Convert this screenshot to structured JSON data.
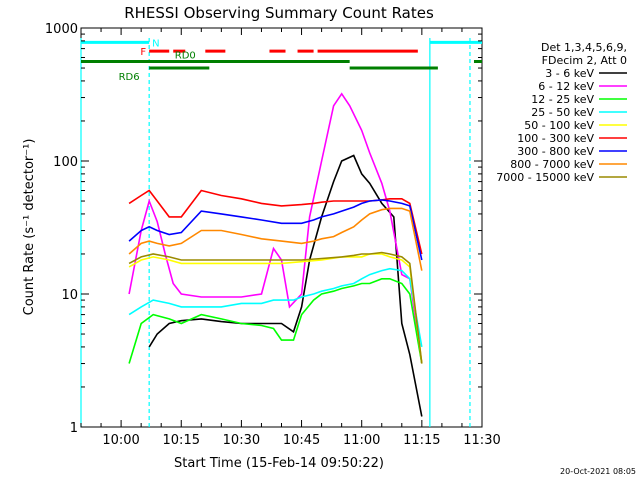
{
  "chart_data": {
    "type": "line",
    "title": "RHESSI Observing Summary Count Rates",
    "xlabel": "Start Time (15-Feb-14 09:50:22)",
    "ylabel": "Count Rate (s⁻¹ detector⁻¹)",
    "yscale": "log",
    "ylim": [
      1,
      1000
    ],
    "xlim_min": [
      -10,
      90
    ],
    "x_ticks": [
      {
        "min": 0,
        "label": "10:00"
      },
      {
        "min": 15,
        "label": "10:15"
      },
      {
        "min": 30,
        "label": "10:30"
      },
      {
        "min": 45,
        "label": "10:45"
      },
      {
        "min": 60,
        "label": "11:00"
      },
      {
        "min": 75,
        "label": "11:15"
      },
      {
        "min": 90,
        "label": "11:30"
      }
    ],
    "y_ticks": [
      {
        "v": 1,
        "label": "1"
      },
      {
        "v": 10,
        "label": "10"
      },
      {
        "v": 100,
        "label": "100"
      },
      {
        "v": 1000,
        "label": "1000"
      }
    ],
    "legend": {
      "placement": "right",
      "header": [
        "Det 1,3,4,5,6,9,",
        "FDecim 2, Att 0"
      ]
    },
    "series": [
      {
        "name": "3 - 6 keV",
        "color": "#000000",
        "x": [
          7,
          9,
          12,
          15,
          20,
          25,
          30,
          35,
          40,
          43,
          45,
          47,
          50,
          53,
          55,
          58,
          60,
          62,
          65,
          68,
          70,
          72,
          75
        ],
        "y": [
          4,
          5,
          6,
          6.3,
          6.5,
          6.2,
          6,
          6,
          6,
          5.2,
          8,
          18,
          38,
          70,
          100,
          110,
          80,
          68,
          48,
          38,
          6,
          3.5,
          1.2
        ]
      },
      {
        "name": "6 - 12 keV",
        "color": "#ff00ff",
        "x": [
          2,
          5,
          7,
          9,
          11,
          13,
          15,
          20,
          25,
          30,
          35,
          38,
          40,
          42,
          45,
          47,
          50,
          53,
          55,
          57,
          60,
          62,
          65,
          67,
          70,
          72,
          75
        ],
        "y": [
          10,
          30,
          50,
          35,
          20,
          12,
          10,
          9.5,
          9.5,
          9.5,
          10,
          22,
          18,
          8,
          10,
          38,
          100,
          260,
          320,
          260,
          170,
          115,
          68,
          42,
          14,
          13,
          3
        ]
      },
      {
        "name": "12 - 25 keV",
        "color": "#00ff00",
        "x": [
          2,
          5,
          8,
          12,
          15,
          20,
          25,
          30,
          35,
          38,
          40,
          43,
          45,
          48,
          50,
          53,
          55,
          58,
          60,
          62,
          65,
          67,
          70,
          72,
          75
        ],
        "y": [
          3,
          6,
          7,
          6.5,
          6,
          7,
          6.5,
          6,
          5.8,
          5.5,
          4.5,
          4.5,
          7,
          9,
          10,
          10.5,
          11,
          11.5,
          12,
          12,
          13,
          13,
          12,
          10,
          3
        ]
      },
      {
        "name": "25 - 50 keV",
        "color": "#00ffff",
        "x": [
          2,
          5,
          8,
          12,
          15,
          20,
          25,
          30,
          35,
          38,
          40,
          43,
          45,
          48,
          50,
          53,
          55,
          58,
          60,
          62,
          65,
          67,
          70,
          72,
          75
        ],
        "y": [
          7,
          8,
          9,
          8.5,
          8,
          8,
          8,
          8.5,
          8.5,
          9,
          9,
          9,
          9.5,
          10,
          10.5,
          11,
          11.5,
          12,
          13,
          14,
          15,
          15.5,
          15,
          13,
          4
        ]
      },
      {
        "name": "50 - 100 keV",
        "color": "#ffff00",
        "x": [
          2,
          5,
          8,
          12,
          15,
          20,
          25,
          30,
          35,
          40,
          45,
          50,
          55,
          58,
          60,
          62,
          65,
          67,
          70,
          72,
          75
        ],
        "y": [
          16,
          18,
          19,
          18,
          17,
          17,
          17,
          17,
          17,
          17,
          17.5,
          18,
          19,
          19,
          19,
          20,
          20,
          19,
          18,
          16,
          3
        ]
      },
      {
        "name": "100 - 300 keV",
        "color": "#ff0000",
        "x": [
          2,
          5,
          7,
          9,
          12,
          15,
          20,
          25,
          30,
          35,
          40,
          45,
          48,
          50,
          53,
          55,
          58,
          60,
          62,
          65,
          67,
          70,
          72,
          75
        ],
        "y": [
          48,
          55,
          60,
          50,
          38,
          38,
          60,
          55,
          52,
          48,
          46,
          47,
          48,
          49,
          50,
          50,
          50,
          50,
          50,
          51,
          52,
          52,
          48,
          20
        ]
      },
      {
        "name": "300 - 800 keV",
        "color": "#0000ff",
        "x": [
          2,
          5,
          7,
          9,
          12,
          15,
          20,
          25,
          30,
          35,
          40,
          45,
          48,
          50,
          53,
          55,
          58,
          60,
          62,
          65,
          67,
          70,
          72,
          75
        ],
        "y": [
          25,
          30,
          32,
          30,
          28,
          29,
          42,
          40,
          38,
          36,
          34,
          34,
          36,
          38,
          40,
          42,
          45,
          48,
          50,
          51,
          50,
          48,
          46,
          18
        ]
      },
      {
        "name": "800 - 7000 keV",
        "color": "#ff8800",
        "x": [
          2,
          5,
          7,
          9,
          12,
          15,
          20,
          25,
          30,
          35,
          40,
          45,
          48,
          50,
          53,
          55,
          58,
          60,
          62,
          65,
          67,
          70,
          72,
          75
        ],
        "y": [
          20,
          24,
          25,
          24,
          23,
          24,
          30,
          30,
          28,
          26,
          25,
          24,
          25,
          26,
          27,
          29,
          32,
          36,
          40,
          43,
          44,
          44,
          42,
          15
        ]
      },
      {
        "name": "7000 - 15000 keV",
        "color": "#9a8a00",
        "x": [
          2,
          5,
          8,
          12,
          15,
          20,
          25,
          30,
          35,
          40,
          45,
          50,
          55,
          58,
          60,
          62,
          65,
          67,
          70,
          72,
          75
        ],
        "y": [
          17,
          19,
          20,
          19,
          18,
          18,
          18,
          18,
          18,
          18,
          18,
          18.5,
          19,
          19.5,
          20,
          20,
          20.5,
          20,
          19,
          17,
          3
        ]
      }
    ],
    "status_flags": [
      {
        "label": "N",
        "color": "#00ffff",
        "level": 780,
        "segments": [
          [
            -10,
            7
          ],
          [
            77,
            90
          ]
        ]
      },
      {
        "label": "F",
        "color": "#ff0000",
        "level": 670,
        "segments": [
          [
            7,
            12
          ],
          [
            13,
            16
          ],
          [
            21,
            26
          ],
          [
            37,
            41
          ],
          [
            44,
            48
          ],
          [
            49,
            74
          ]
        ]
      },
      {
        "label": "RD0",
        "color": "#007f00",
        "level": 560,
        "segments": [
          [
            -10,
            57
          ],
          [
            88,
            90
          ]
        ]
      },
      {
        "label": "RD6",
        "color": "#007f00",
        "level": 500,
        "segments": [
          [
            7,
            22
          ],
          [
            57,
            79
          ]
        ]
      }
    ],
    "vertical_markers": [
      {
        "min": -10,
        "color": "#00ffff",
        "style": "solid"
      },
      {
        "min": 7,
        "color": "#00ffff",
        "style": "dashed"
      },
      {
        "min": 77,
        "color": "#00ffff",
        "style": "solid"
      },
      {
        "min": 87,
        "color": "#00ffff",
        "style": "dashed"
      }
    ],
    "footer": "20-Oct-2021 08:05",
    "grid": false
  }
}
